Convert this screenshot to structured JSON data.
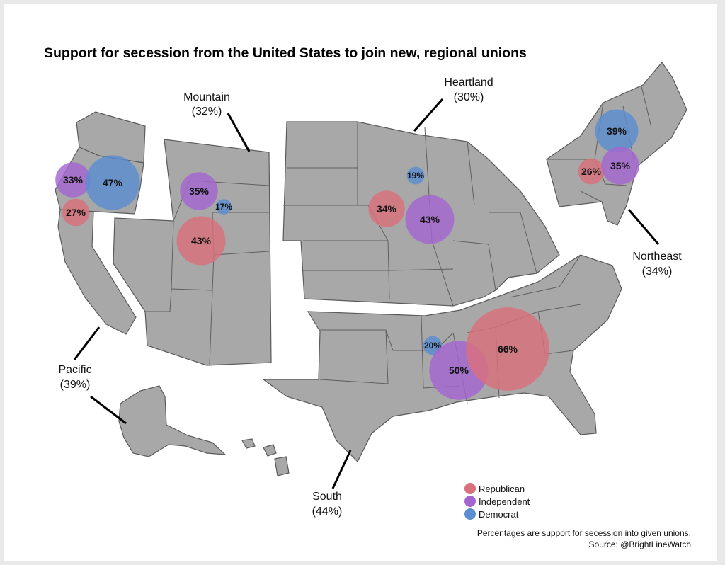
{
  "title": "Support for secession from the United States to join new, regional unions",
  "regions": [
    {
      "key": "mountain",
      "name": "Mountain",
      "value": "(32%)"
    },
    {
      "key": "heartland",
      "name": "Heartland",
      "value": "(30%)"
    },
    {
      "key": "northeast",
      "name": "Northeast",
      "value": "(34%)"
    },
    {
      "key": "pacific",
      "name": "Pacific",
      "value": "(39%)"
    },
    {
      "key": "south",
      "name": "South",
      "value": "(44%)"
    }
  ],
  "bubbles": [
    {
      "region": "Pacific",
      "party": "Independent",
      "value": 33,
      "label": "33%"
    },
    {
      "region": "Pacific",
      "party": "Democrat",
      "value": 47,
      "label": "47%"
    },
    {
      "region": "Pacific",
      "party": "Republican",
      "value": 27,
      "label": "27%"
    },
    {
      "region": "Mountain",
      "party": "Independent",
      "value": 35,
      "label": "35%"
    },
    {
      "region": "Mountain",
      "party": "Democrat",
      "value": 17,
      "label": "17%"
    },
    {
      "region": "Mountain",
      "party": "Republican",
      "value": 43,
      "label": "43%"
    },
    {
      "region": "Heartland",
      "party": "Democrat",
      "value": 19,
      "label": "19%"
    },
    {
      "region": "Heartland",
      "party": "Republican",
      "value": 34,
      "label": "34%"
    },
    {
      "region": "Heartland",
      "party": "Independent",
      "value": 43,
      "label": "43%"
    },
    {
      "region": "Northeast",
      "party": "Democrat",
      "value": 39,
      "label": "39%"
    },
    {
      "region": "Northeast",
      "party": "Republican",
      "value": 26,
      "label": "26%"
    },
    {
      "region": "Northeast",
      "party": "Independent",
      "value": 35,
      "label": "35%"
    },
    {
      "region": "South",
      "party": "Democrat",
      "value": 20,
      "label": "20%"
    },
    {
      "region": "South",
      "party": "Independent",
      "value": 50,
      "label": "50%"
    },
    {
      "region": "South",
      "party": "Republican",
      "value": 66,
      "label": "66%"
    }
  ],
  "legend": [
    {
      "party": "Republican",
      "label": "Republican",
      "color": "#d9707c"
    },
    {
      "party": "Independent",
      "label": "Independent",
      "color": "#a366d1"
    },
    {
      "party": "Democrat",
      "label": "Democrat",
      "color": "#5b8ed0"
    }
  ],
  "footnote": {
    "line1": "Percentages are support for secession into given unions.",
    "line2": "Source: @BrightLineWatch"
  }
}
